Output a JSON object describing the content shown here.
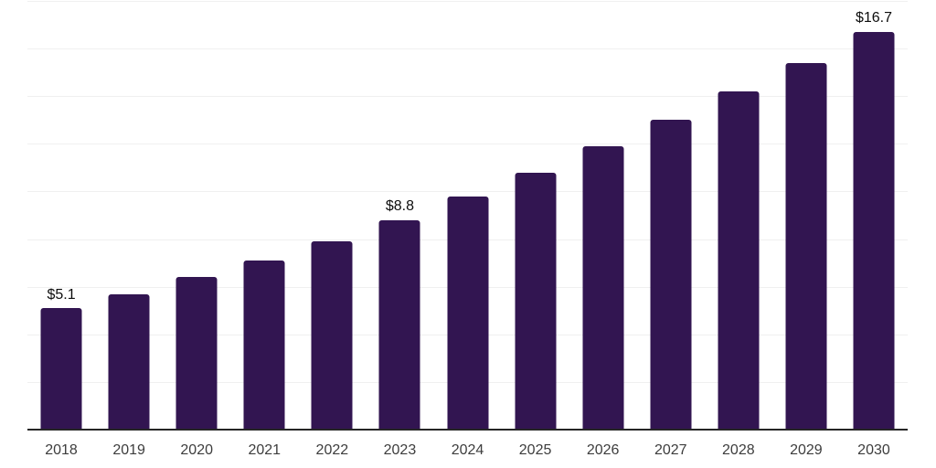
{
  "chart_data": {
    "type": "bar",
    "title": "",
    "categories": [
      "2018",
      "2019",
      "2020",
      "2021",
      "2022",
      "2023",
      "2024",
      "2025",
      "2026",
      "2027",
      "2028",
      "2029",
      "2030"
    ],
    "values": [
      5.1,
      5.7,
      6.4,
      7.1,
      7.9,
      8.8,
      9.8,
      10.8,
      11.9,
      13.0,
      14.2,
      15.4,
      16.7
    ],
    "annotations": [
      {
        "category": "2018",
        "text": "$5.1"
      },
      {
        "category": "2023",
        "text": "$8.8"
      },
      {
        "category": "2030",
        "text": "$16.7"
      }
    ],
    "xlabel": "",
    "ylabel": "",
    "ylim": [
      0,
      18
    ],
    "gridline_step": 2,
    "grid": true,
    "legend": false,
    "colors": {
      "bar": "#321551",
      "axis_line": "#262626",
      "gridline": "#f0f0f0",
      "tick_label": "#3d3d3d",
      "annotation": "#0d0d0d",
      "background": "#ffffff"
    }
  }
}
